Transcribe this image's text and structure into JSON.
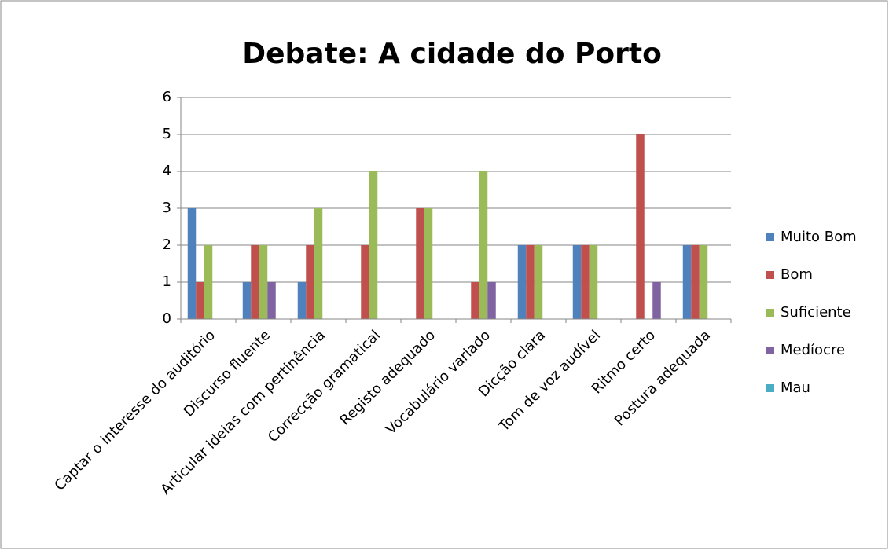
{
  "chart_data": {
    "type": "bar",
    "title": "Debate: A cidade do Porto",
    "categories": [
      "Captar o interesse do auditório",
      "Discurso fluente",
      "Articular ideias com pertinência",
      "Correcção gramatical",
      "Registo adequado",
      "Vocabulário variado",
      "Dicção clara",
      "Tom de voz audível",
      "Ritmo certo",
      "Postura adequada"
    ],
    "series": [
      {
        "name": "Muito Bom",
        "color": "#4f81bd",
        "values": [
          3,
          1,
          1,
          0,
          0,
          0,
          2,
          2,
          0,
          2
        ]
      },
      {
        "name": "Bom",
        "color": "#c0504d",
        "values": [
          1,
          2,
          2,
          2,
          3,
          1,
          2,
          2,
          5,
          2
        ]
      },
      {
        "name": "Suficiente",
        "color": "#9bbb59",
        "values": [
          2,
          2,
          3,
          4,
          3,
          4,
          2,
          2,
          0,
          2
        ]
      },
      {
        "name": "Medíocre",
        "color": "#8064a2",
        "values": [
          0,
          1,
          0,
          0,
          0,
          1,
          0,
          0,
          1,
          0
        ]
      },
      {
        "name": "Mau",
        "color": "#4bacc6",
        "values": [
          0,
          0,
          0,
          0,
          0,
          0,
          0,
          0,
          0,
          0
        ]
      }
    ],
    "ylim": [
      0,
      6
    ],
    "yticks": [
      0,
      1,
      2,
      3,
      4,
      5,
      6
    ],
    "grid": true,
    "legend": "right"
  }
}
